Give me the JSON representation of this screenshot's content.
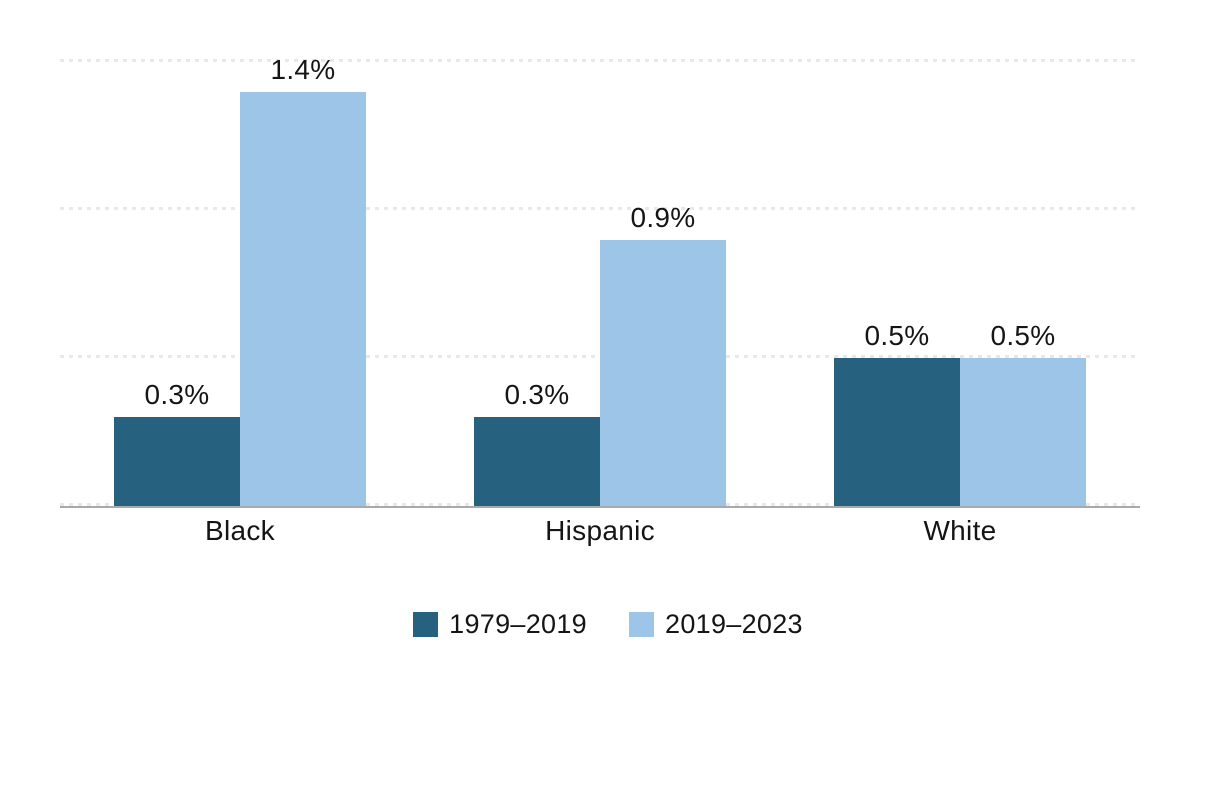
{
  "chart_data": {
    "type": "bar",
    "title": "",
    "xlabel": "",
    "ylabel": "",
    "categories": [
      "Black",
      "Hispanic",
      "White"
    ],
    "series": [
      {
        "name": "1979–2019",
        "color": "#266180",
        "values": [
          0.3,
          0.3,
          0.5
        ],
        "labels": [
          "0.3%",
          "0.3%",
          "0.5%"
        ]
      },
      {
        "name": "2019–2023",
        "color": "#9cc5e8",
        "values": [
          1.4,
          0.9,
          0.5
        ],
        "labels": [
          "1.4%",
          "0.9%",
          "0.5%"
        ]
      }
    ],
    "ylim": [
      0,
      1.5
    ],
    "gridline_values": [
      0,
      0.5,
      1.0,
      1.5
    ],
    "grid_style": "dotted",
    "y_axis_labels_shown": false,
    "legend_position": "bottom",
    "colors": {
      "gridline": "#e8e8e8",
      "axis_line": "#a9a9a9",
      "text": "#151515",
      "background": "#ffffff"
    }
  }
}
